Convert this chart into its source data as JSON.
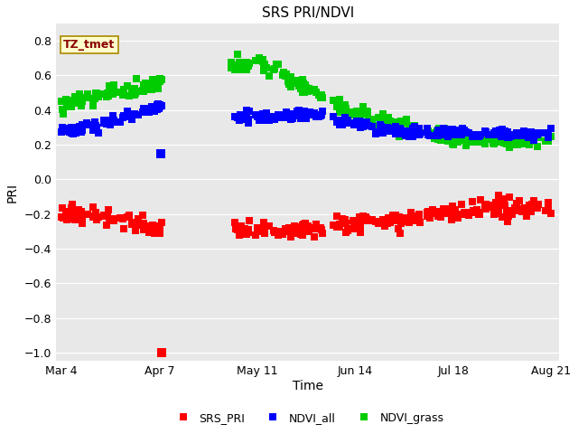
{
  "title": "SRS PRI/NDVI",
  "xlabel": "Time",
  "ylabel": "PRI",
  "ylim": [
    -1.05,
    0.9
  ],
  "yticks": [
    -1.0,
    -0.8,
    -0.6,
    -0.4,
    -0.2,
    0.0,
    0.2,
    0.4,
    0.6,
    0.8
  ],
  "xtick_labels": [
    "Mar 4",
    "Apr 7",
    "May 11",
    "Jun 14",
    "Jul 18",
    "Aug 21"
  ],
  "bg_color": "#e8e8e8",
  "bg_color_lower": "#d8d8d8",
  "legend_labels": [
    "SRS_PRI",
    "NDVI_all",
    "NDVI_grass"
  ],
  "legend_colors": [
    "#ff0000",
    "#0000ff",
    "#00cc00"
  ],
  "annotation_text": "TZ_tmet",
  "annotation_color": "#880000",
  "annotation_bg": "#ffffcc",
  "annotation_border": "#aa8800",
  "marker_size": 3.0,
  "fig_width": 6.4,
  "fig_height": 4.8,
  "dpi": 100
}
